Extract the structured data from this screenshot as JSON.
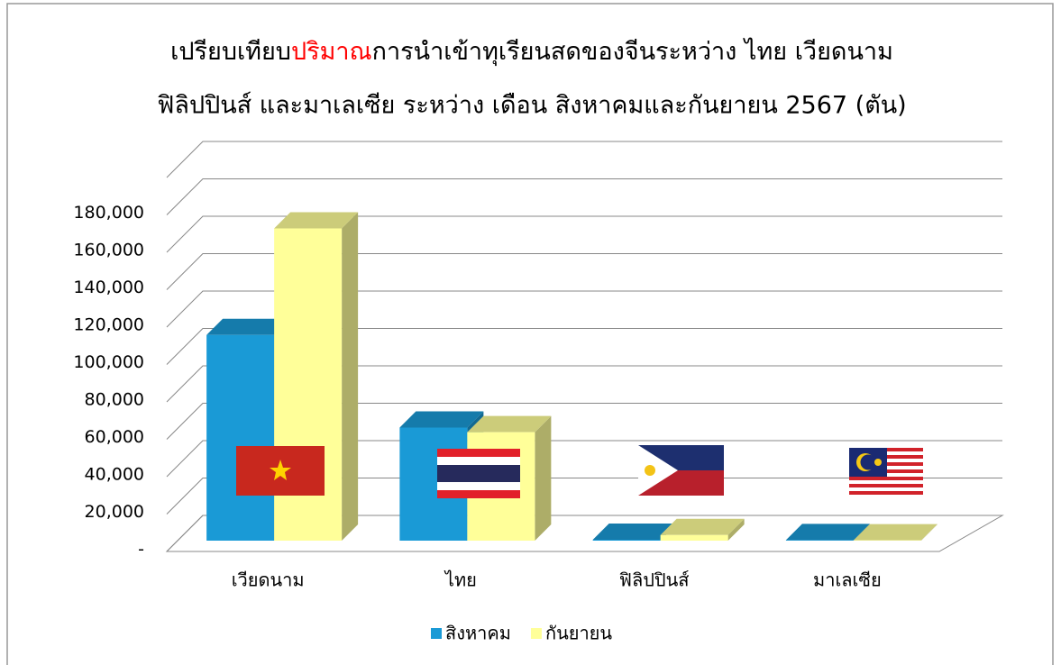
{
  "chart_data": {
    "type": "bar3d",
    "title": [
      "เปรียบเทียบ",
      "ปริมาณ",
      "การนำเข้าทุเรียนสดของจีนระหว่าง ไทย เวียดนาม",
      "ฟิลิปปินส์ และมาเลเซีย ระหว่าง เดือน สิงหาคมและกันยายน 2567 (ตัน)"
    ],
    "title_highlight_color": "#ff0000",
    "categories": [
      "เวียดนาม",
      "ไทย",
      "ฟิลิปปินส์",
      "มาเลเซีย"
    ],
    "series": [
      {
        "name": "สิงหาคม",
        "color": "#1a9ad6",
        "values": [
          110000,
          60500,
          500,
          300
        ]
      },
      {
        "name": "กันยายน",
        "color": "#ffff99",
        "values": [
          167000,
          58000,
          3000,
          200
        ]
      }
    ],
    "ylim": [
      0,
      200000
    ],
    "yticks": [
      {
        "value": 0,
        "label": "-"
      },
      {
        "value": 20000,
        "label": "20,000"
      },
      {
        "value": 40000,
        "label": "40,000"
      },
      {
        "value": 60000,
        "label": "60,000"
      },
      {
        "value": 80000,
        "label": "80,000"
      },
      {
        "value": 100000,
        "label": "100,000"
      },
      {
        "value": 120000,
        "label": "120,000"
      },
      {
        "value": 140000,
        "label": "140,000"
      },
      {
        "value": 160000,
        "label": "160,000"
      },
      {
        "value": 180000,
        "label": "180,000"
      }
    ],
    "grid": true,
    "legend": "bottom"
  }
}
